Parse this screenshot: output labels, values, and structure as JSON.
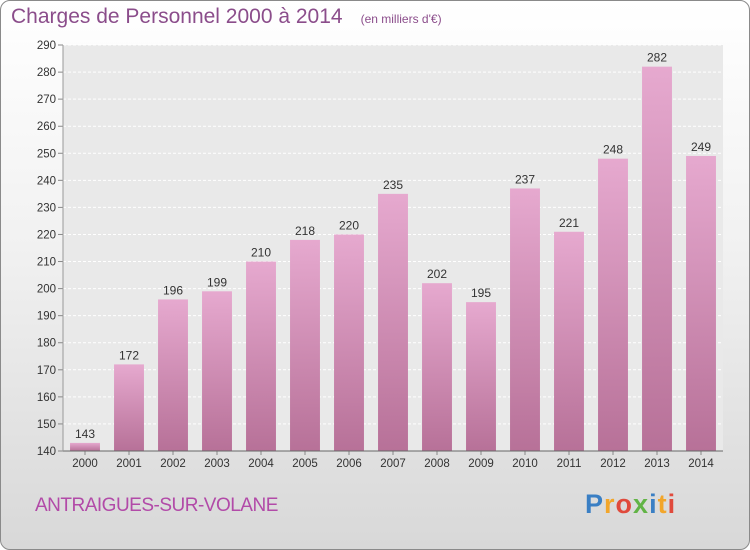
{
  "header": {
    "title": "Charges de Personnel 2000 à 2014",
    "unit": "(en milliers d'€)"
  },
  "footer": {
    "commune": "ANTRAIGUES-SUR-VOLANE",
    "logo_letters": [
      "P",
      "r",
      "o",
      "x",
      "i",
      "t",
      "i"
    ],
    "logo_colors": [
      "#3a7fc4",
      "#f2a62b",
      "#e04a3c",
      "#62b446",
      "#3a7fc4",
      "#f2a62b",
      "#e04a3c"
    ]
  },
  "colors": {
    "bar_light": "#e6a9cf",
    "bar_dark": "#b77198",
    "text": "#8b4d8b",
    "label": "#333333"
  },
  "chart_data": {
    "type": "bar",
    "title": "Charges de Personnel 2000 à 2014",
    "categories": [
      "2000",
      "2001",
      "2002",
      "2003",
      "2004",
      "2005",
      "2006",
      "2007",
      "2008",
      "2009",
      "2010",
      "2011",
      "2012",
      "2013",
      "2014"
    ],
    "values": [
      143,
      172,
      196,
      199,
      210,
      218,
      220,
      235,
      202,
      195,
      237,
      221,
      248,
      282,
      249
    ],
    "ylim": [
      140,
      290
    ],
    "yticks": [
      140,
      150,
      160,
      170,
      180,
      190,
      200,
      210,
      220,
      230,
      240,
      250,
      260,
      270,
      280,
      290
    ],
    "grid": true,
    "legend": "none"
  }
}
